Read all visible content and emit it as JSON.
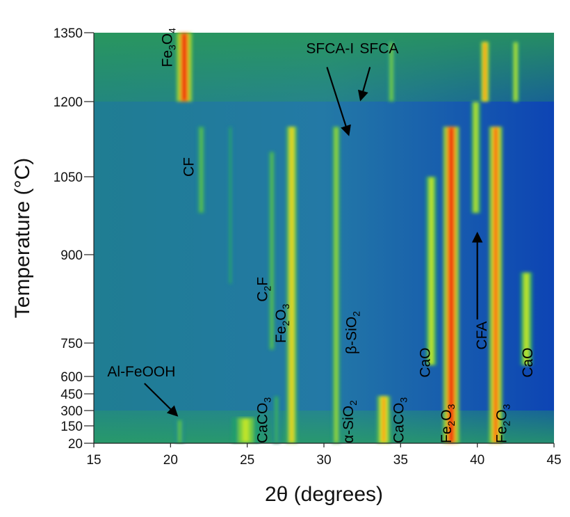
{
  "chart_data": {
    "type": "heatmap",
    "xlabel": "2θ (degrees)",
    "ylabel": "Temperature (°C)",
    "xlim": [
      15,
      45
    ],
    "xticks": [
      15,
      20,
      25,
      30,
      35,
      40,
      45
    ],
    "yticks": [
      20,
      150,
      300,
      450,
      600,
      750,
      900,
      1050,
      1200,
      1350
    ],
    "ymax_label": 1350,
    "colormap": [
      "#0a3aa8",
      "#1e6fb0",
      "#22a06a",
      "#7fd23a",
      "#e8f020",
      "#ff7a10",
      "#e81010"
    ],
    "bands": [
      {
        "x": 20.9,
        "t0": 1200,
        "t1": 1350,
        "i": 1.0,
        "w": 0.25
      },
      {
        "x": 22.0,
        "t0": 980,
        "t1": 1150,
        "i": 0.45,
        "w": 0.14
      },
      {
        "x": 23.9,
        "t0": 850,
        "t1": 1150,
        "i": 0.35,
        "w": 0.1
      },
      {
        "x": 26.6,
        "t0": 720,
        "t1": 1100,
        "i": 0.45,
        "w": 0.12
      },
      {
        "x": 27.9,
        "t0": 20,
        "t1": 1150,
        "i": 0.72,
        "w": 0.18
      },
      {
        "x": 30.8,
        "t0": 20,
        "t1": 1150,
        "i": 0.55,
        "w": 0.14
      },
      {
        "x": 33.9,
        "t0": 20,
        "t1": 430,
        "i": 0.8,
        "w": 0.22
      },
      {
        "x": 34.4,
        "t0": 1200,
        "t1": 1330,
        "i": 0.5,
        "w": 0.12
      },
      {
        "x": 37.0,
        "t0": 650,
        "t1": 1050,
        "i": 0.62,
        "w": 0.18
      },
      {
        "x": 38.3,
        "t0": 20,
        "t1": 1150,
        "i": 1.0,
        "w": 0.26
      },
      {
        "x": 39.9,
        "t0": 980,
        "t1": 1200,
        "i": 0.6,
        "w": 0.16
      },
      {
        "x": 40.5,
        "t0": 1200,
        "t1": 1330,
        "i": 0.85,
        "w": 0.14
      },
      {
        "x": 41.2,
        "t0": 20,
        "t1": 1150,
        "i": 0.9,
        "w": 0.22
      },
      {
        "x": 42.5,
        "t0": 1200,
        "t1": 1330,
        "i": 0.6,
        "w": 0.12
      },
      {
        "x": 43.2,
        "t0": 650,
        "t1": 870,
        "i": 0.62,
        "w": 0.2
      },
      {
        "x": 20.6,
        "t0": 20,
        "t1": 210,
        "i": 0.45,
        "w": 0.15
      },
      {
        "x": 24.9,
        "t0": 20,
        "t1": 230,
        "i": 0.6,
        "w": 0.45
      },
      {
        "x": 26.9,
        "t0": 20,
        "t1": 430,
        "i": 0.4,
        "w": 0.12
      }
    ],
    "annotations": [
      {
        "id": "fe3o4",
        "base": "Fe",
        "s1": "3",
        "mid": "O",
        "s2": "4",
        "x": 20.1,
        "t": 1275,
        "rotate": true
      },
      {
        "id": "sfca-i",
        "base": "SFCA-I",
        "x": 30.4,
        "t": 1305,
        "rotate": false
      },
      {
        "id": "sfca",
        "base": "SFCA",
        "x": 33.6,
        "t": 1305,
        "rotate": false
      },
      {
        "id": "cf",
        "base": "CF",
        "x": 21.5,
        "t": 1050,
        "rotate": true
      },
      {
        "id": "c2f",
        "base": "C",
        "s1": "2",
        "mid": "F",
        "x": 26.3,
        "t": 820,
        "rotate": true
      },
      {
        "id": "fe2o3-mid",
        "base": "Fe",
        "s1": "2",
        "mid": "O",
        "s2": "3",
        "x": 27.5,
        "t": 750,
        "rotate": true
      },
      {
        "id": "beta-sio2",
        "base": "β-SiO",
        "s1": "2",
        "x": 32.1,
        "t": 700,
        "rotate": true
      },
      {
        "id": "cfa",
        "base": "CFA",
        "x": 40.6,
        "t": 720,
        "rotate": true
      },
      {
        "id": "cao-left",
        "base": "CaO",
        "x": 36.9,
        "t": 590,
        "rotate": true
      },
      {
        "id": "cao-right",
        "base": "CaO",
        "x": 43.6,
        "t": 590,
        "rotate": true
      },
      {
        "id": "al-feooh",
        "base": "Al-FeOOH",
        "x": 18.1,
        "t": 600,
        "rotate": false
      },
      {
        "id": "caco3-left",
        "base": "CaCO",
        "s1": "3",
        "x": 26.3,
        "t": 20,
        "rotate": true
      },
      {
        "id": "alpha-sio2",
        "base": "α-SiO",
        "s1": "2",
        "x": 31.9,
        "t": 20,
        "rotate": true
      },
      {
        "id": "caco3-right",
        "base": "CaCO",
        "s1": "3",
        "x": 35.2,
        "t": 20,
        "rotate": true
      },
      {
        "id": "fe2o3-low-left",
        "base": "Fe",
        "s1": "2",
        "mid": "O",
        "s2": "3",
        "x": 38.3,
        "t": 20,
        "rotate": true
      },
      {
        "id": "fe2o3-low-right",
        "base": "Fe",
        "s1": "2",
        "mid": "O",
        "s2": "3",
        "x": 41.9,
        "t": 20,
        "rotate": true
      }
    ],
    "arrows": [
      {
        "id": "arrow-sfca-i",
        "x1": 30.2,
        "t1": 1275,
        "x2": 31.6,
        "t2": 1135
      },
      {
        "id": "arrow-sfca",
        "x1": 33.0,
        "t1": 1275,
        "x2": 32.4,
        "t2": 1205
      },
      {
        "id": "arrow-cfa",
        "x1": 40.0,
        "t1": 790,
        "x2": 40.0,
        "t2": 940
      },
      {
        "id": "arrow-al-feooh",
        "x1": 18.3,
        "t1": 540,
        "x2": 20.4,
        "t2": 255
      }
    ]
  }
}
